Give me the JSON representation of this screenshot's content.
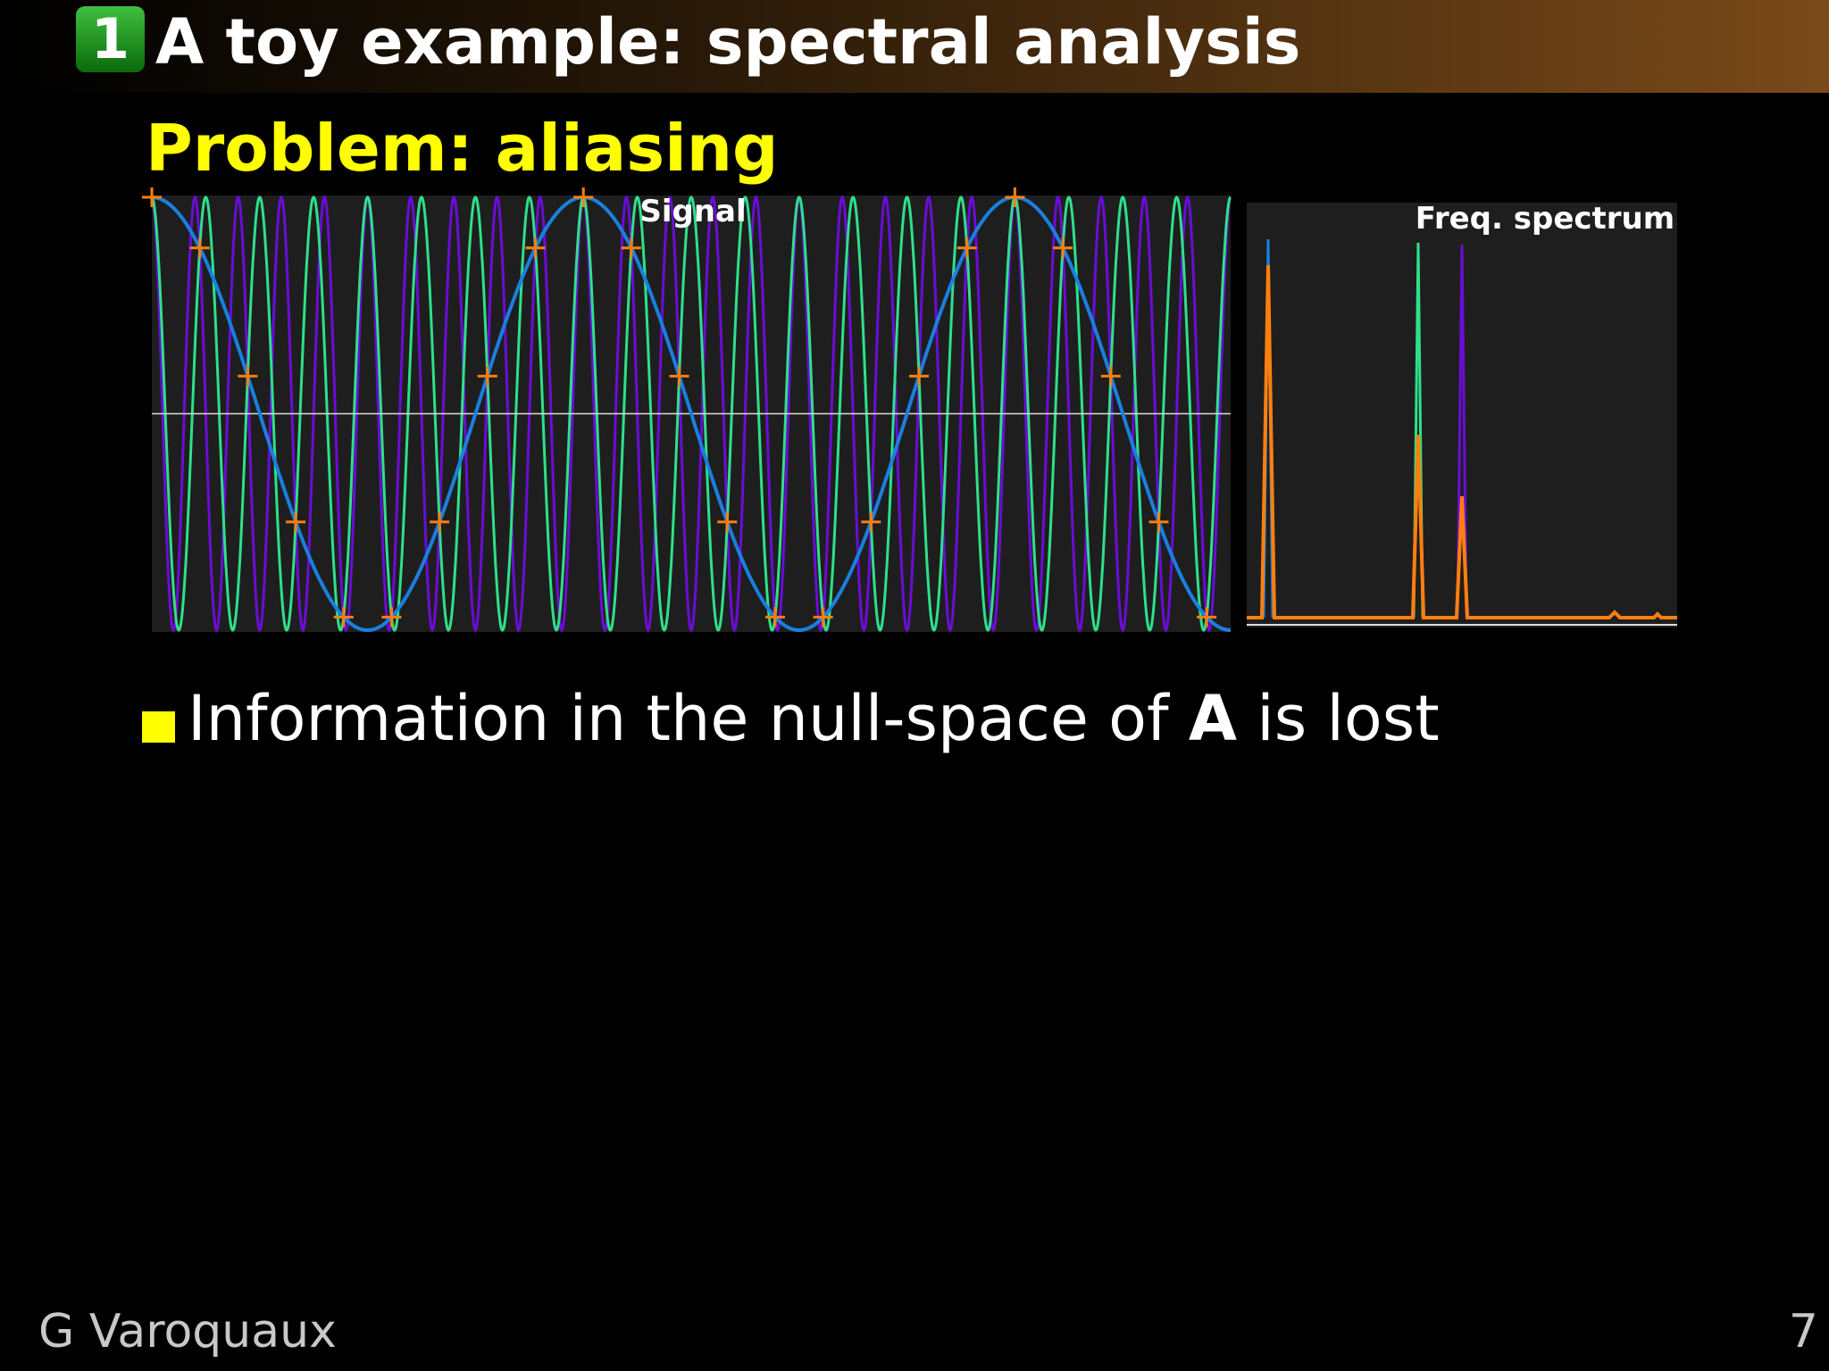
{
  "header": {
    "section_number": "1",
    "title": "A toy example: spectral analysis"
  },
  "subtitle": "Problem: aliasing",
  "figure": {
    "signal_title": "Signal",
    "spectrum_title": "Freq. spectrum"
  },
  "bullets": [
    {
      "before": "Information in the null-space of ",
      "bold": "A",
      "after": " is lost"
    }
  ],
  "footer": {
    "author": "G Varoquaux",
    "page": "7"
  }
}
